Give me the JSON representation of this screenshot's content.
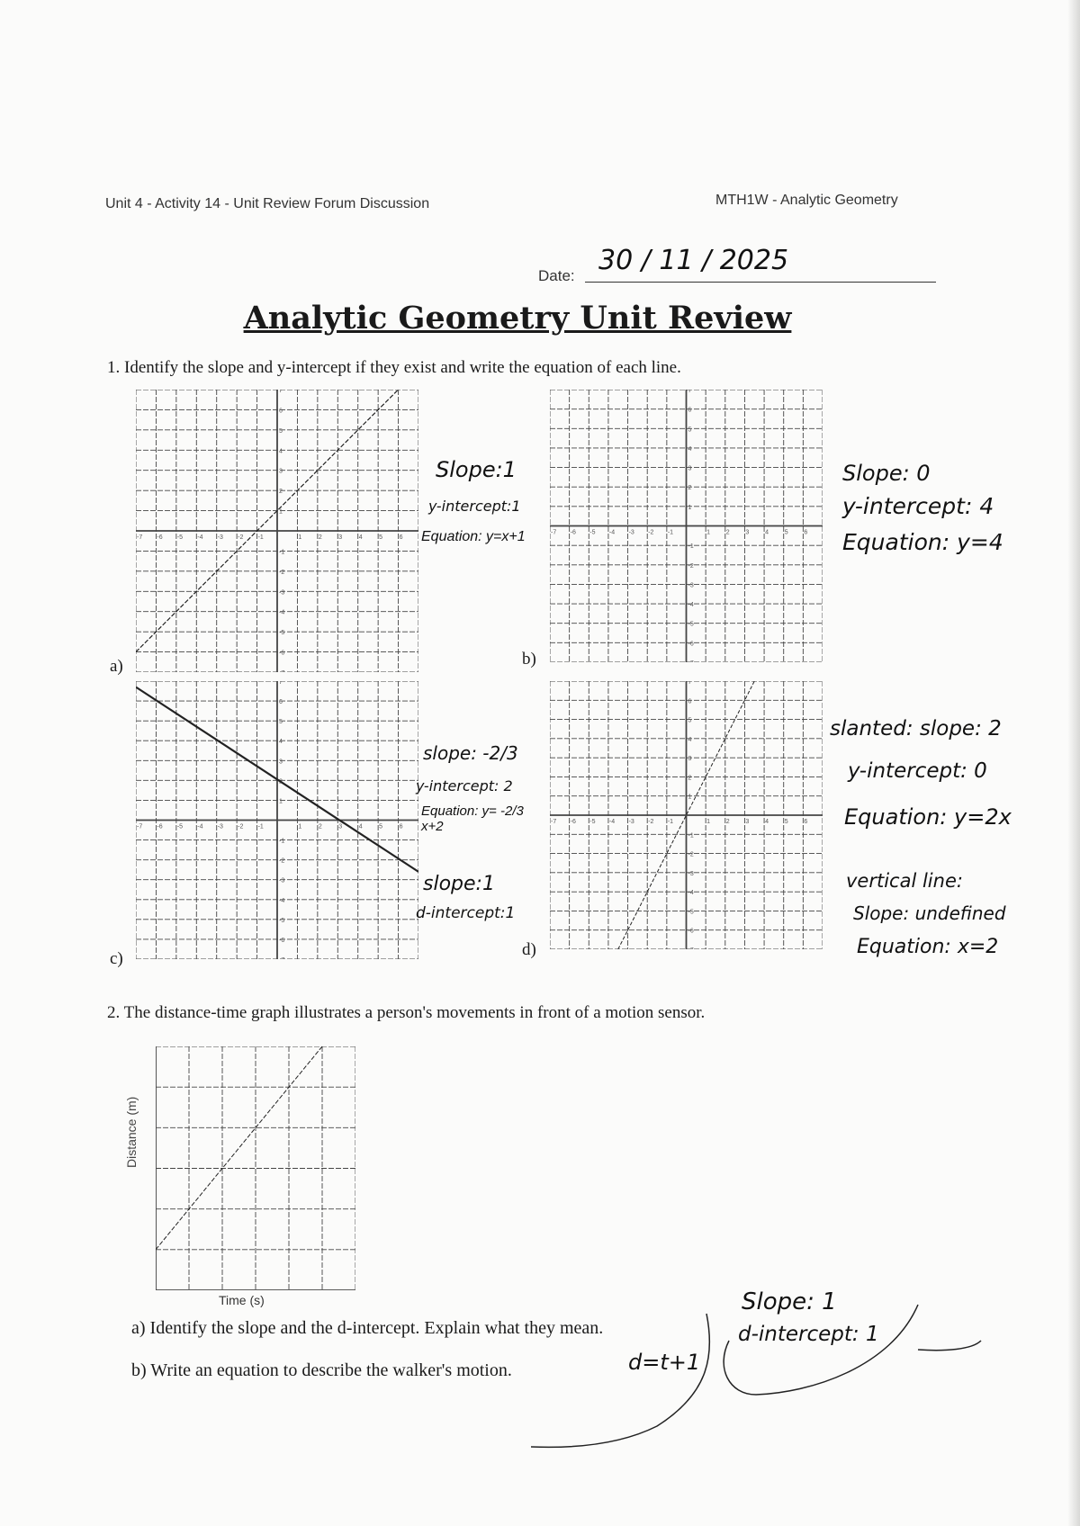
{
  "header": {
    "left": "Unit 4 - Activity 14 - Unit Review Forum Discussion",
    "right": "MTH1W - Analytic Geometry",
    "date_label": "Date:",
    "date_value": "30 / 11 / 2025"
  },
  "title": "Analytic Geometry Unit Review",
  "question1": {
    "text": "1.  Identify the slope and y-intercept if they exist and write the equation of each line.",
    "axis_range": [
      -7,
      7
    ],
    "graphs": [
      {
        "label": "a)",
        "answers": [
          "Slope:1",
          "y-intercept:1",
          "Equation: y=x+1"
        ]
      },
      {
        "label": "b)",
        "answers": [
          "Slope: 0",
          "y-intercept: 4",
          "Equation: y=4"
        ]
      },
      {
        "label": "c)",
        "answers": [
          "slope: -2/3",
          "y-intercept: 2",
          "Equation: y= -2/3 x+2"
        ],
        "extra": [
          "slope:1",
          "d-intercept:1"
        ]
      },
      {
        "label": "d)",
        "answers": [
          "slanted: slope: 2",
          "y-intercept: 0",
          "Equation: y=2x"
        ],
        "extra": [
          "vertical line:",
          "Slope: undefined",
          "Equation: x=2"
        ]
      }
    ]
  },
  "question2": {
    "text": "2.  The distance-time graph illustrates a person's movements in front of a motion sensor.",
    "graph": {
      "xlabel": "Time (s)",
      "ylabel": "Distance (m)",
      "x_range": [
        0,
        6
      ],
      "y_range": [
        0,
        6
      ]
    },
    "part_a": "a)  Identify the slope and the d-intercept.  Explain what they mean.",
    "part_b": "b)  Write an equation to describe the walker's motion.",
    "answer_b": "d=t+1",
    "answer_a": [
      "Slope: 1",
      "d-intercept: 1"
    ]
  }
}
